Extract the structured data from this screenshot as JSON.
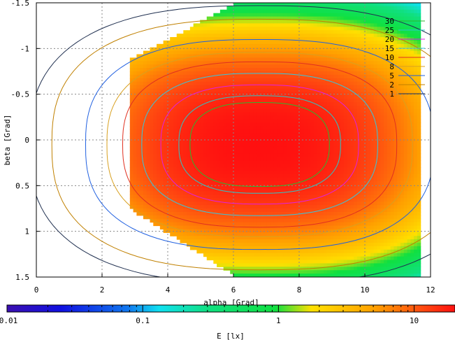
{
  "chart_data": {
    "type": "heatmap",
    "xlabel": "alpha [Grad]",
    "ylabel": "beta [Grad]",
    "colorbar_label": "E [lx]",
    "x_ticks": [
      "0",
      "2",
      "4",
      "6",
      "8",
      "10",
      "12"
    ],
    "y_ticks": [
      "-1.5",
      "-1",
      "-0.5",
      "0",
      "0.5",
      "1",
      "1.5"
    ],
    "colorbar_ticks": [
      "0.01",
      "0.1",
      "1",
      "10"
    ],
    "xlim": [
      0,
      12
    ],
    "ylim": [
      -1.5,
      1.5
    ],
    "y_inverted": true,
    "colorbar_scale": "log",
    "colorbar_range": [
      0.01,
      20
    ],
    "grid": true,
    "legend_position": "top-right",
    "contours": [
      {
        "name": "30",
        "color": "#2db82d"
      },
      {
        "name": "25",
        "color": "#28c8c8"
      },
      {
        "name": "20",
        "color": "#e020e0"
      },
      {
        "name": "15",
        "color": "#30c8e0"
      },
      {
        "name": "10",
        "color": "#e03020"
      },
      {
        "name": "8",
        "color": "#d8a020"
      },
      {
        "name": "5",
        "color": "#2060e0"
      },
      {
        "name": "2",
        "color": "#c08000"
      },
      {
        "name": "1",
        "color": "#203050"
      }
    ],
    "field": {
      "peak_value": 20,
      "peak_alpha": 6.8,
      "peak_beta": 0.05
    }
  }
}
